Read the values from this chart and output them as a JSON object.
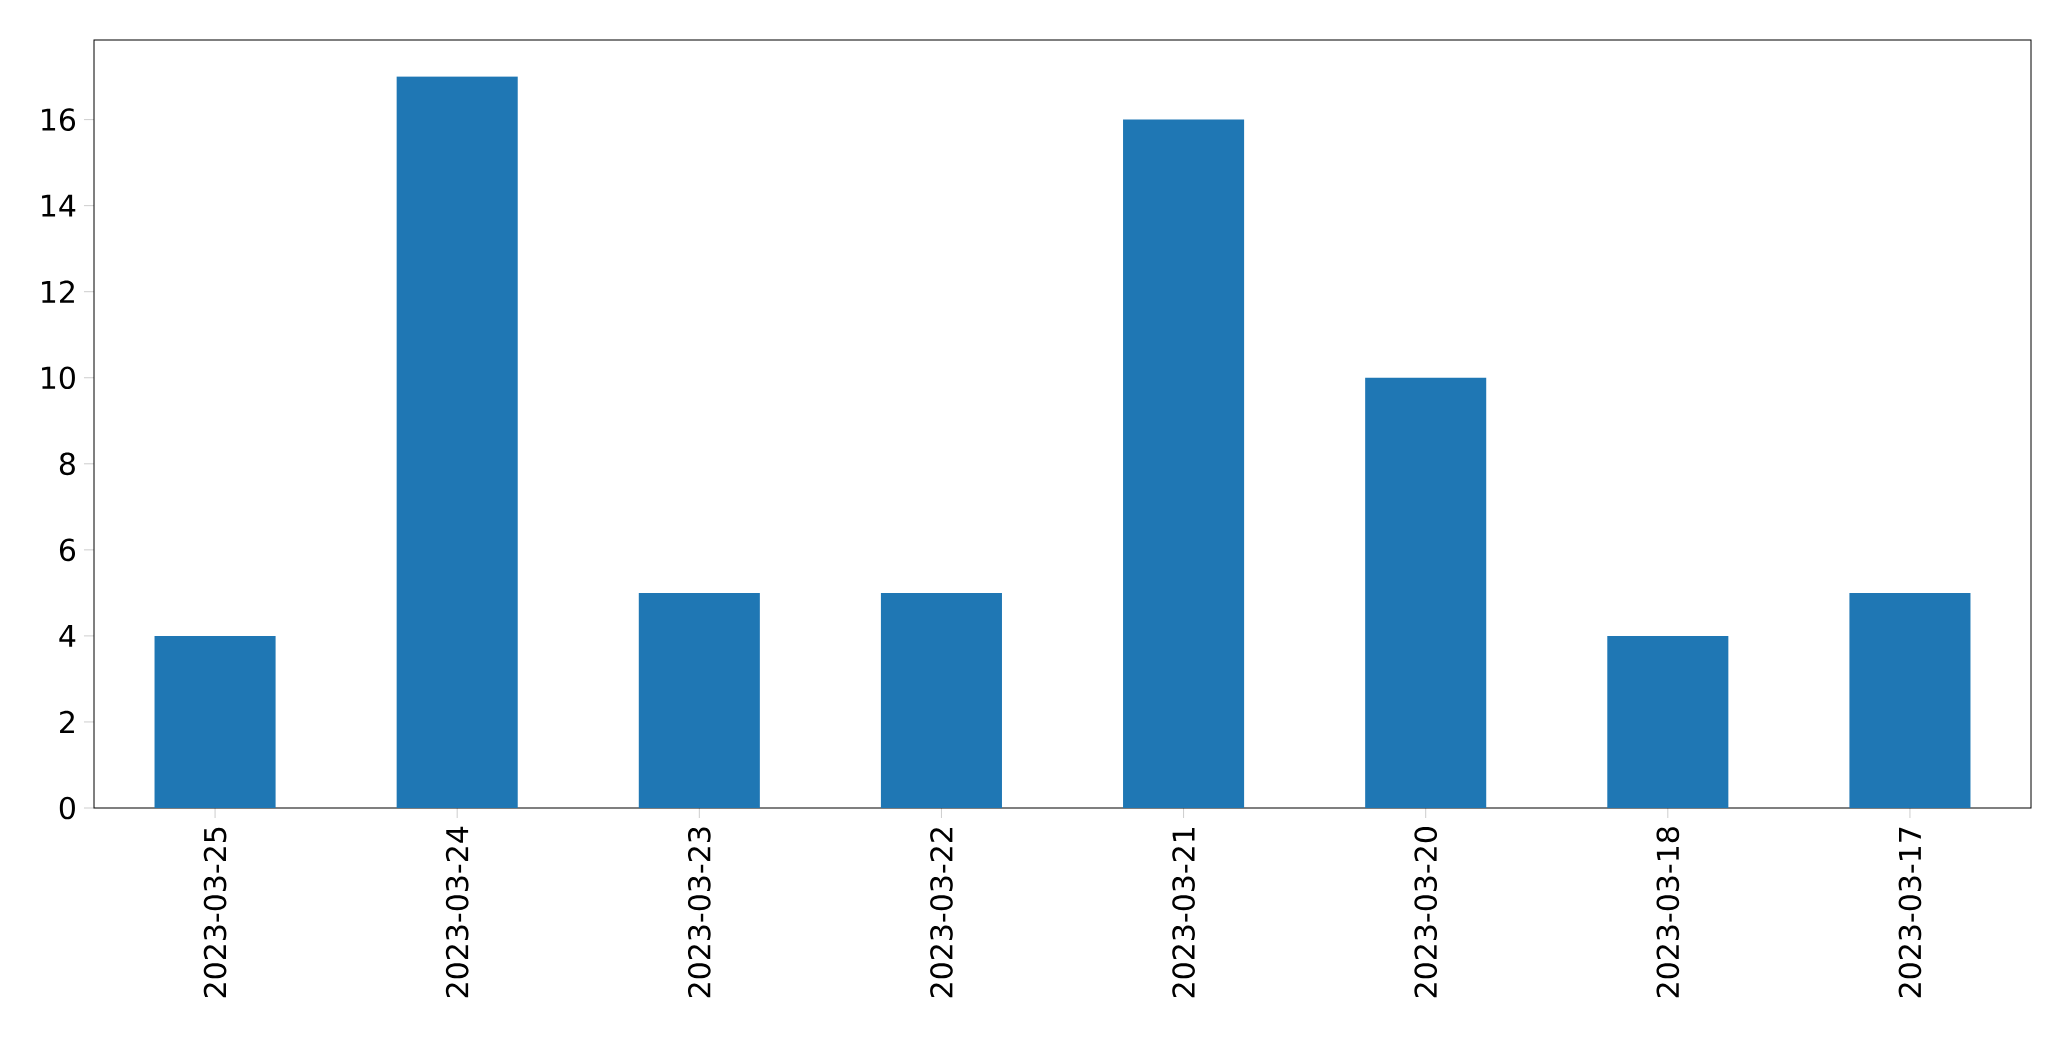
{
  "chart_data": {
    "type": "bar",
    "categories": [
      "2023-03-25",
      "2023-03-24",
      "2023-03-23",
      "2023-03-22",
      "2023-03-21",
      "2023-03-20",
      "2023-03-18",
      "2023-03-17"
    ],
    "values": [
      4,
      17,
      5,
      5,
      16,
      10,
      4,
      5
    ],
    "color": "#1f77b4",
    "ylim": [
      0,
      17.85
    ],
    "yticks": [
      0,
      2,
      4,
      6,
      8,
      10,
      12,
      14,
      16
    ]
  }
}
